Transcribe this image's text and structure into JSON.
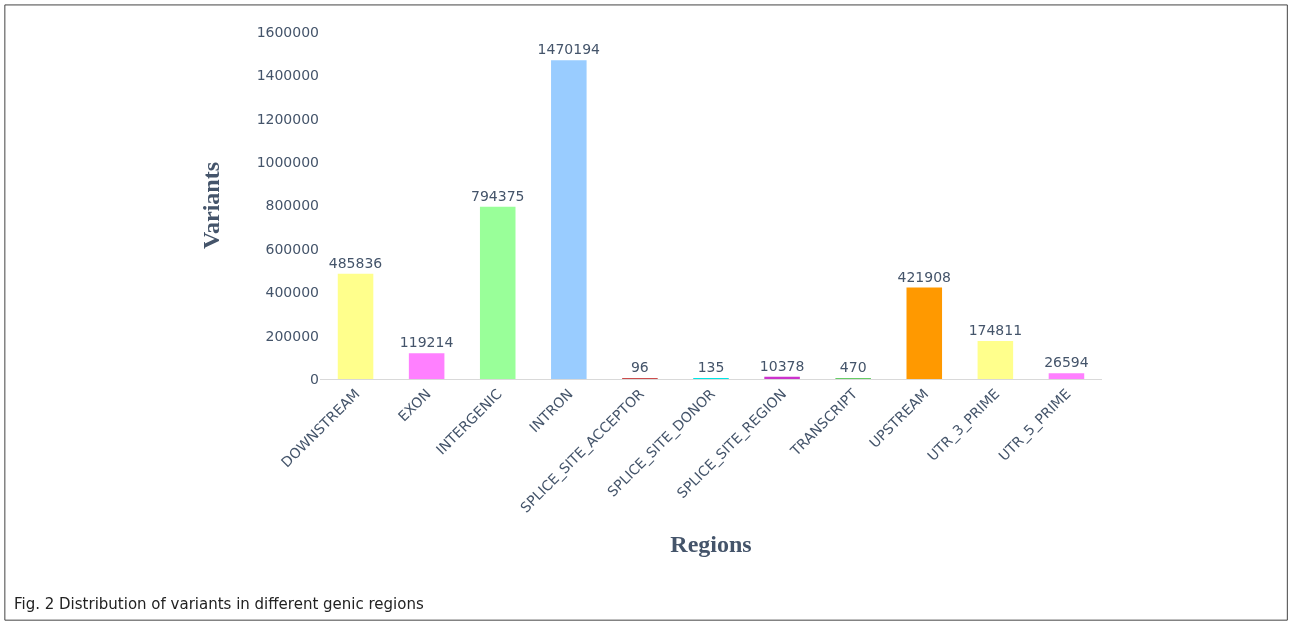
{
  "chart_data": {
    "type": "bar",
    "xlabel": "Regions",
    "ylabel": "Variants",
    "categories": [
      "DOWNSTREAM",
      "EXON",
      "INTERGENIC",
      "INTRON",
      "SPLICE_SITE_ACCEPTOR",
      "SPLICE_SITE_DONOR",
      "SPLICE_SITE_REGION",
      "TRANSCRIPT",
      "UPSTREAM",
      "UTR_3_PRIME",
      "UTR_5_PRIME"
    ],
    "values": [
      485836,
      119214,
      794375,
      1470194,
      96,
      135,
      10378,
      470,
      421908,
      174811,
      26594
    ],
    "colors": [
      "#ffff8c",
      "#ff80ff",
      "#99ff99",
      "#99ccff",
      "#cc4c4c",
      "#00e5e5",
      "#cc33cc",
      "#66cc66",
      "#ff9900",
      "#ffff8c",
      "#ff80ff"
    ],
    "ylim": [
      0,
      1600000
    ],
    "yticks": [
      0,
      200000,
      400000,
      600000,
      800000,
      1000000,
      1200000,
      1400000,
      1600000
    ],
    "data_labels": true,
    "grid": false,
    "annotations": [
      "Fig. 2 Distribution of variants in different genic regions"
    ]
  }
}
